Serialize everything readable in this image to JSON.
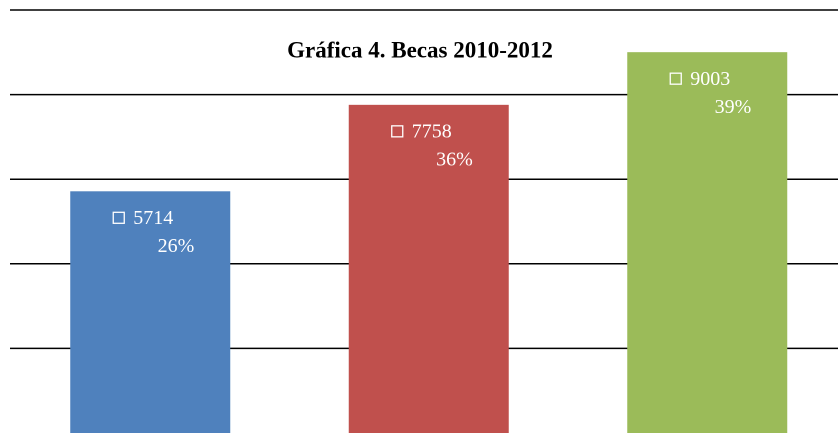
{
  "chart_data": {
    "type": "bar",
    "title": "Gráfica 4. Becas 2010-2012",
    "categories": [
      null,
      null,
      null
    ],
    "values": [
      5714,
      7758,
      9003
    ],
    "percentages": [
      26,
      36,
      39
    ],
    "percentage_labels": [
      "26%",
      "36%",
      "39%"
    ],
    "colors": [
      "#4f81bd",
      "#c0504d",
      "#9bbb59"
    ],
    "ylim": [
      0,
      10000
    ],
    "yticks": [
      2000,
      4000,
      6000,
      8000,
      10000
    ],
    "grid": true
  }
}
